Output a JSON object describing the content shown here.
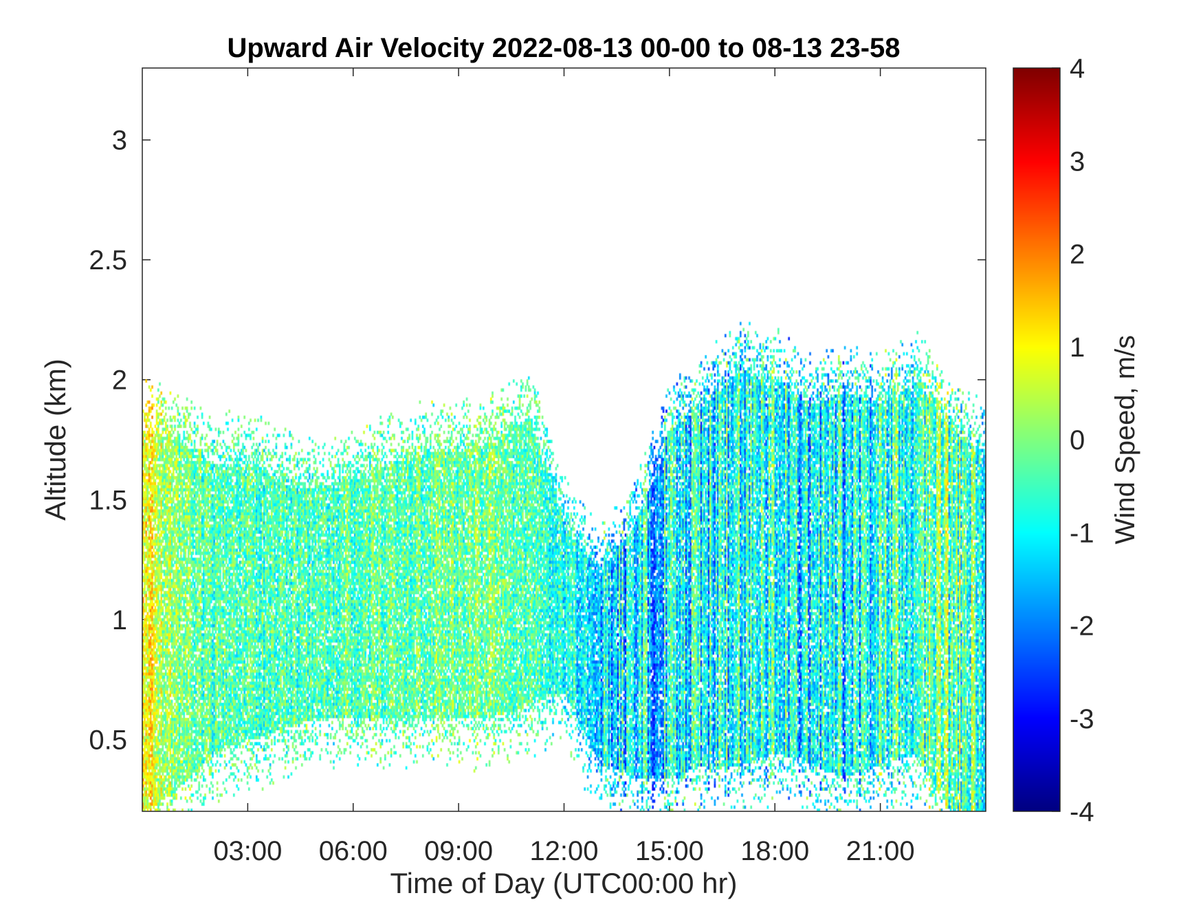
{
  "chart_data": {
    "type": "heatmap",
    "title": "Upward Air Velocity 2022-08-13 00-00 to 08-13 23-58",
    "xlabel": "Time of Day (UTC00:00 hr)",
    "ylabel": "Altitude (km)",
    "xlim_hours": [
      0,
      24
    ],
    "ylim": [
      0.2,
      3.3
    ],
    "x_ticks": [
      3,
      6,
      9,
      12,
      15,
      18,
      21
    ],
    "x_tick_labels": [
      "03:00",
      "06:00",
      "09:00",
      "12:00",
      "15:00",
      "18:00",
      "21:00"
    ],
    "y_ticks": [
      0.5,
      1,
      1.5,
      2,
      2.5,
      3
    ],
    "y_tick_labels": [
      "0.5",
      "1",
      "1.5",
      "2",
      "2.5",
      "3"
    ],
    "colorbar": {
      "label": "Wind Speed, m/s",
      "clim": [
        -4,
        4
      ],
      "ticks": [
        -4,
        -3,
        -2,
        -1,
        0,
        1,
        2,
        3,
        4
      ],
      "tick_labels": [
        "-4",
        "-3",
        "-2",
        "-1",
        "0",
        "1",
        "2",
        "3",
        "4"
      ],
      "colormap": "jet"
    },
    "echo_envelope": {
      "hours": [
        0,
        1,
        2,
        3,
        4,
        5,
        6,
        7,
        8,
        9,
        10,
        11,
        12,
        13,
        14,
        15,
        16,
        17,
        18,
        19,
        20,
        21,
        22,
        23,
        24
      ],
      "top_km": [
        1.8,
        1.75,
        1.65,
        1.65,
        1.6,
        1.55,
        1.6,
        1.65,
        1.7,
        1.7,
        1.75,
        1.85,
        1.4,
        1.2,
        1.4,
        1.8,
        1.9,
        2.05,
        2.0,
        1.9,
        1.95,
        1.9,
        2.0,
        1.8,
        1.7
      ],
      "base_km": [
        0.2,
        0.3,
        0.45,
        0.5,
        0.55,
        0.6,
        0.6,
        0.6,
        0.6,
        0.6,
        0.6,
        0.65,
        0.7,
        0.4,
        0.35,
        0.35,
        0.4,
        0.4,
        0.45,
        0.4,
        0.35,
        0.4,
        0.45,
        0.2,
        0.2
      ],
      "mean_velocity_ms": [
        1.0,
        0.0,
        -0.4,
        -0.5,
        -0.4,
        -0.4,
        -0.3,
        -0.3,
        -0.2,
        -0.2,
        -0.1,
        -0.5,
        -0.9,
        -1.2,
        -1.3,
        -1.2,
        -1.0,
        -0.8,
        -0.9,
        -1.1,
        -1.2,
        -0.8,
        -0.6,
        -0.3,
        -0.3
      ]
    }
  }
}
